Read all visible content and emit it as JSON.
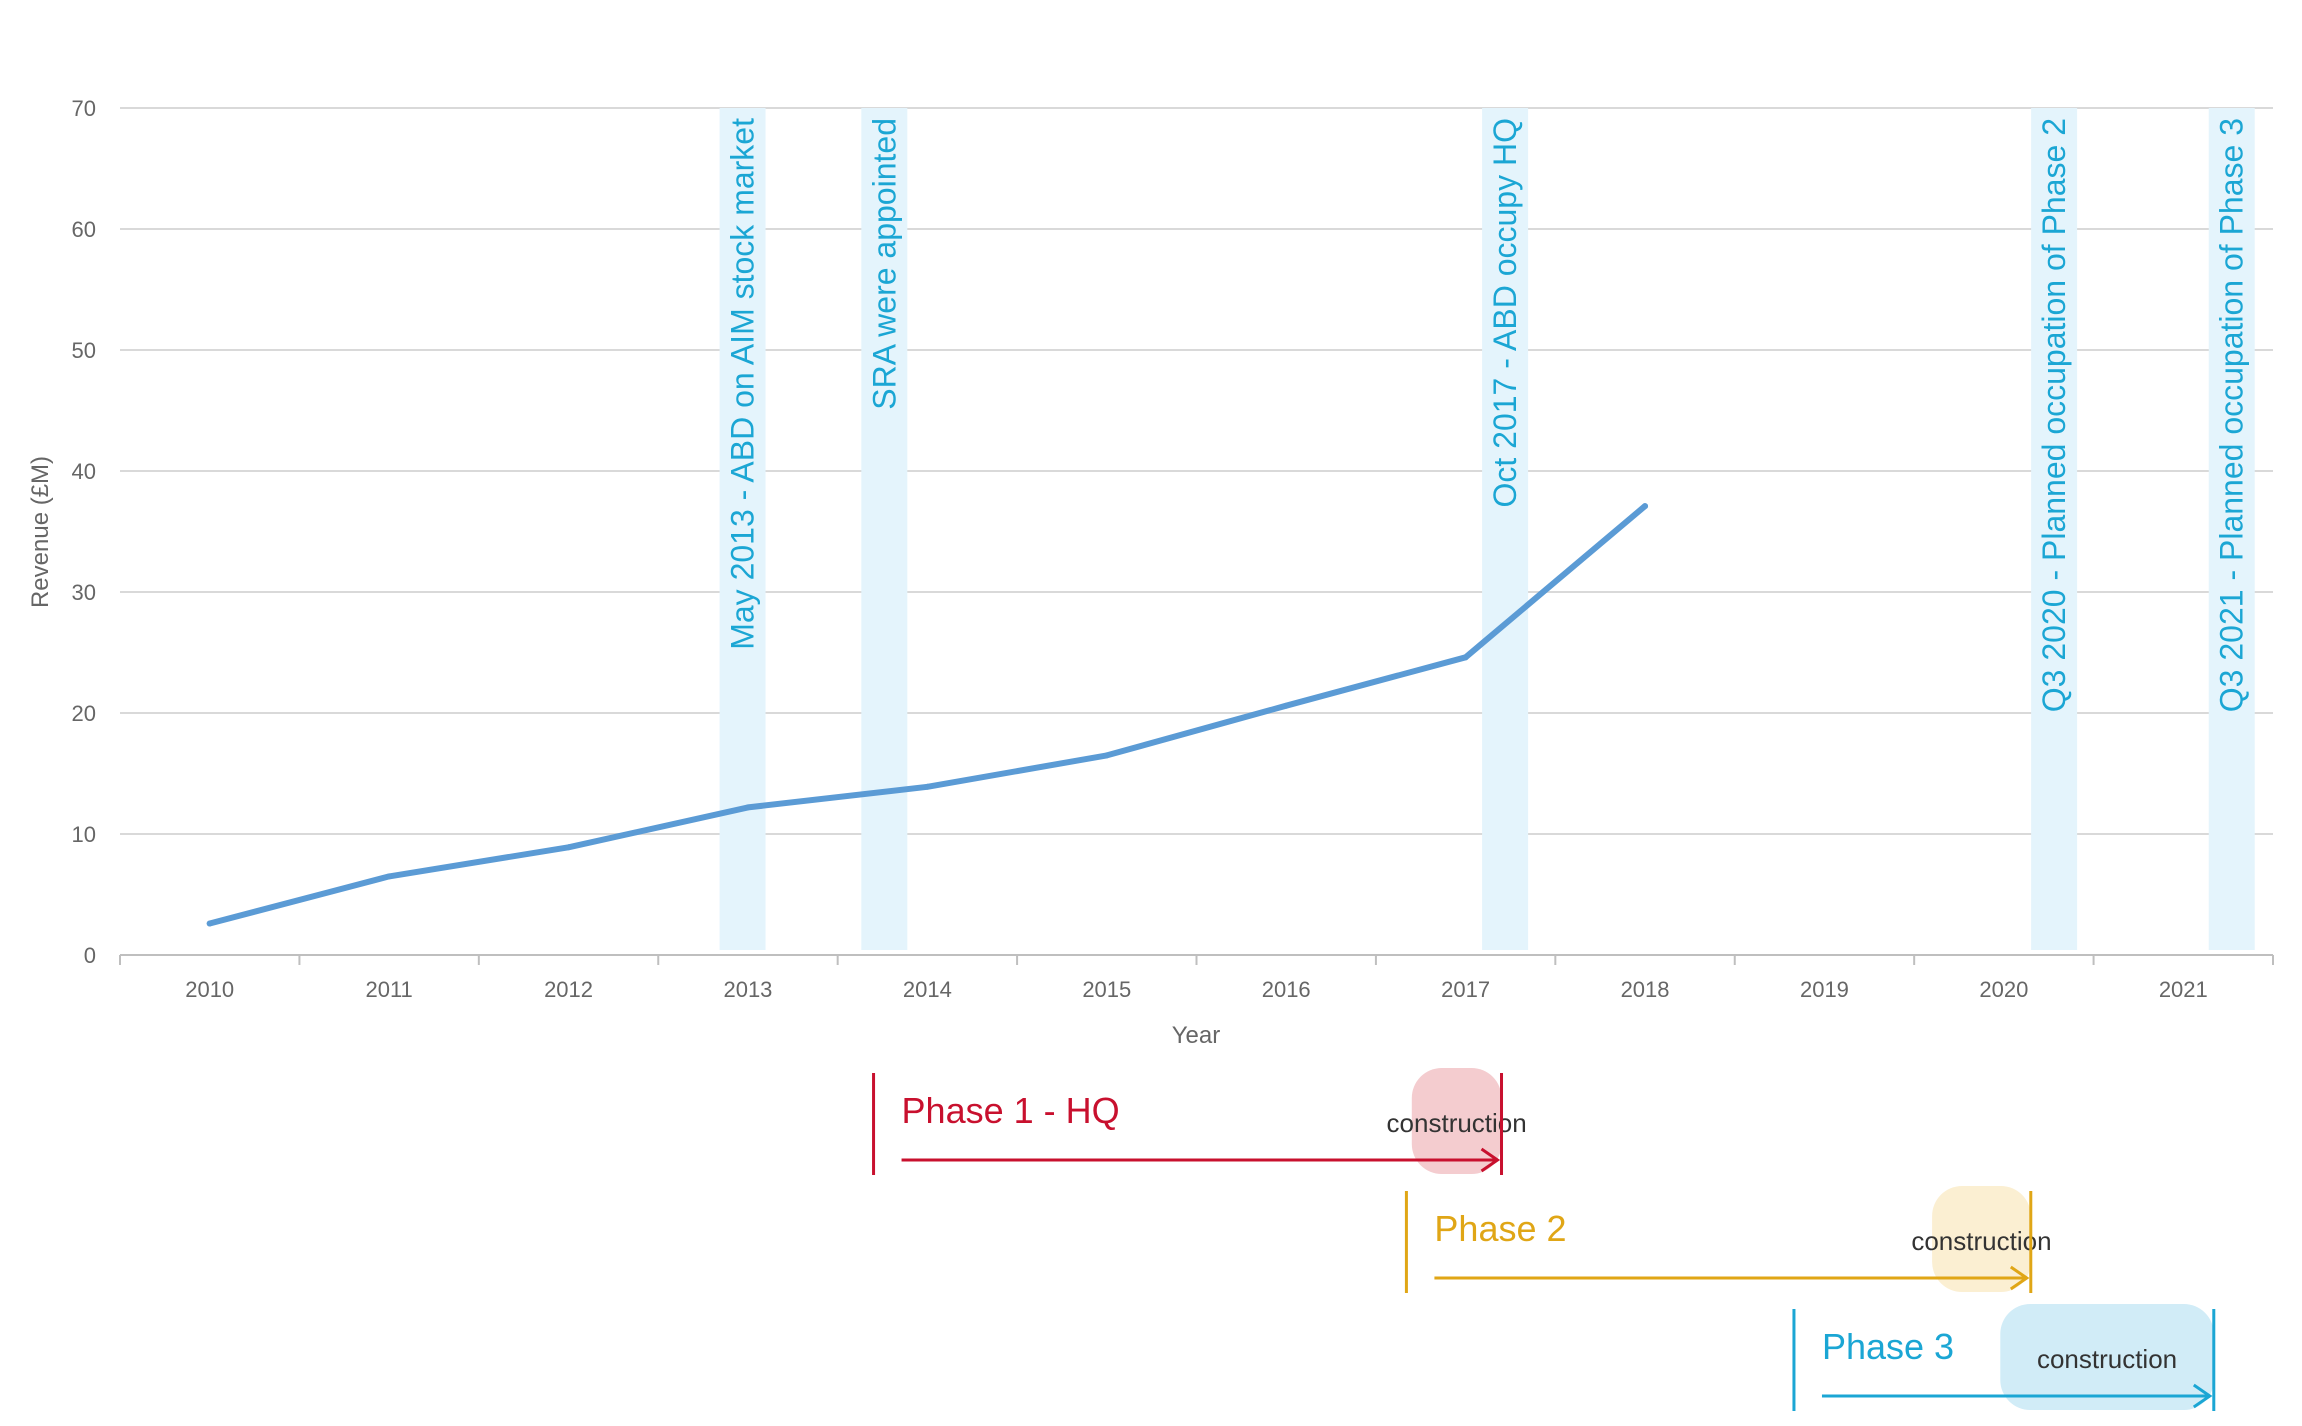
{
  "chart_data": {
    "type": "line",
    "ylabel": "Revenue (£M)",
    "xlabel": "Year",
    "ylim": [
      0,
      70
    ],
    "y_ticks": [
      0,
      10,
      20,
      30,
      40,
      50,
      60,
      70
    ],
    "x_ticks": [
      "2010",
      "2011",
      "2012",
      "2013",
      "2014",
      "2015",
      "2016",
      "2017",
      "2018",
      "2019",
      "2020",
      "2021"
    ],
    "grid": true,
    "series_color": "#5b9bd5",
    "series": [
      {
        "x": [
          2010,
          2011,
          2012,
          2013,
          2014,
          2015,
          2016,
          2017,
          2018
        ],
        "values": [
          2.6,
          6.5,
          8.9,
          12.2,
          13.9,
          16.5,
          20.6,
          24.6,
          37.1
        ]
      }
    ],
    "annotations": [
      {
        "x": 2012.97,
        "text": "May 2013 - ABD on AIM stock market"
      },
      {
        "x": 2013.76,
        "text": "SRA were appointed"
      },
      {
        "x": 2017.22,
        "text": "Oct 2017 - ABD occupy HQ"
      },
      {
        "x": 2020.28,
        "text": "Q3 2020 - Planned occupation of Phase 2"
      },
      {
        "x": 2021.27,
        "text": "Q3 2021 - Planned occupation of Phase 3"
      }
    ],
    "annotation_band_color": "#e4f4fc",
    "annotation_text_color": "#1ba6d4",
    "phases": [
      {
        "label": "Phase 1 - HQ",
        "start": 2013.7,
        "end": 2017.2,
        "construction_start": 2016.7,
        "color": "#c8102e",
        "construction_color": "#f4cccf",
        "construction_label": "construction"
      },
      {
        "label": "Phase 2",
        "start": 2016.67,
        "end": 2020.15,
        "construction_start": 2019.6,
        "color": "#e0a616",
        "construction_color": "#fbefd2",
        "construction_label": "construction"
      },
      {
        "label": "Phase 3",
        "start": 2018.83,
        "end": 2021.17,
        "construction_start": 2019.98,
        "color": "#1ba6d4",
        "construction_color": "#d1ecf7",
        "construction_label": "construction"
      }
    ]
  }
}
